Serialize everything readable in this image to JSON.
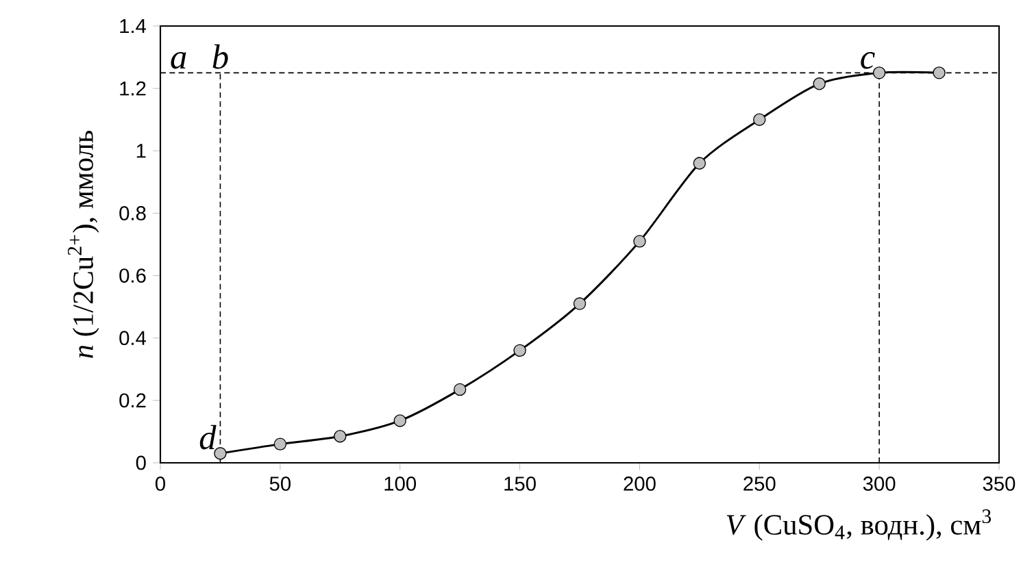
{
  "chart_data": {
    "type": "line",
    "xlabel": "*V* (CuSO$_{4}$, водн.), см$^{3}$",
    "ylabel": "*n* (1/2Cu$^{2+}$), ммоль",
    "x": [
      25,
      50,
      75,
      100,
      125,
      150,
      175,
      200,
      225,
      250,
      275,
      300,
      325
    ],
    "series": [
      {
        "color": "#000000",
        "values": [
          0.03,
          0.06,
          0.085,
          0.135,
          0.235,
          0.36,
          0.51,
          0.71,
          0.96,
          1.1,
          1.215,
          1.25,
          1.25
        ]
      }
    ],
    "marker": "circle",
    "line_style": "solid",
    "xlim": [
      0,
      350
    ],
    "xticks": [
      0,
      50,
      100,
      150,
      200,
      250,
      300,
      350
    ],
    "ylim": [
      0,
      1.4
    ],
    "yticks": [
      0,
      0.2,
      0.4,
      0.6,
      0.8,
      1,
      1.2,
      1.4
    ],
    "ref_lines": [
      {
        "axis": "y",
        "value": 1.25,
        "line_style": "dashed"
      },
      {
        "axis": "x",
        "value": 25,
        "line_style": "dashed"
      },
      {
        "axis": "x",
        "value": 300,
        "line_style": "dashed"
      }
    ],
    "annotations": [
      {
        "text": "a",
        "x": 0,
        "y": 1.25
      },
      {
        "text": "b",
        "x": 25,
        "y": 1.25
      },
      {
        "text": "c",
        "x": 300,
        "y": 1.25
      },
      {
        "text": "d",
        "x": 25,
        "y": 0.03
      }
    ]
  }
}
